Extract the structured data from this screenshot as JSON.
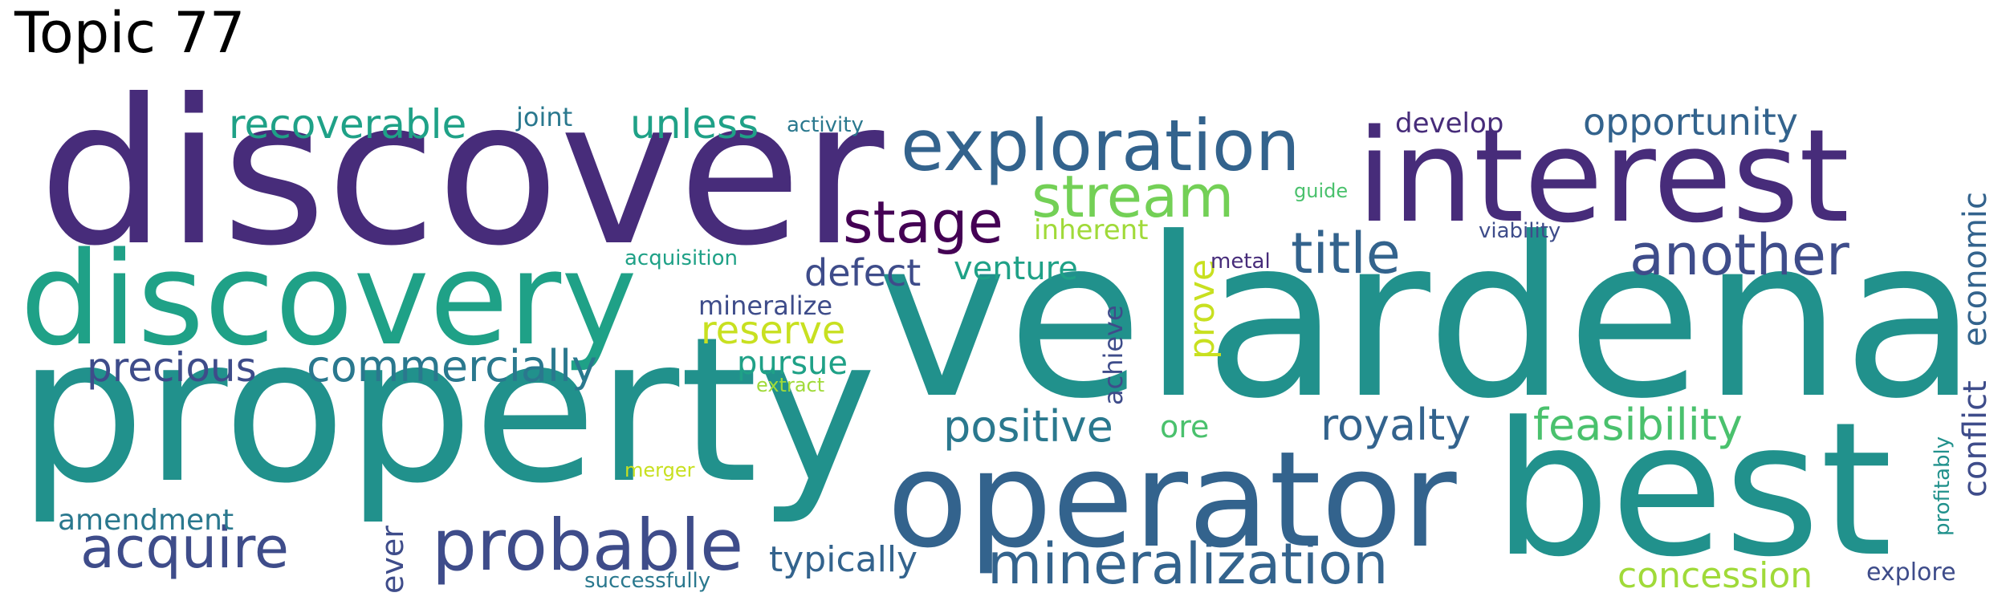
{
  "title": "Topic 77",
  "colors": {
    "c1": "#472c7a",
    "c2": "#3e4c8a",
    "c3": "#33638d",
    "c4": "#2a788e",
    "c5": "#21918c",
    "c6": "#1fa187",
    "c7": "#2db27d",
    "c8": "#4ac16d",
    "c9": "#73d056",
    "c10": "#a0da39",
    "c11": "#c8e020",
    "c12": "#440154"
  },
  "words": [
    {
      "text": "discover",
      "color": "c1"
    },
    {
      "text": "velardena",
      "color": "c5"
    },
    {
      "text": "property",
      "color": "c5"
    },
    {
      "text": "best",
      "color": "c5"
    },
    {
      "text": "interest",
      "color": "c1"
    },
    {
      "text": "discovery",
      "color": "c6"
    },
    {
      "text": "operator",
      "color": "c3"
    },
    {
      "text": "exploration",
      "color": "c3"
    },
    {
      "text": "mineralization",
      "color": "c3"
    },
    {
      "text": "probable",
      "color": "c2"
    },
    {
      "text": "stream",
      "color": "c9"
    },
    {
      "text": "acquire",
      "color": "c2"
    },
    {
      "text": "stage",
      "color": "c12"
    },
    {
      "text": "title",
      "color": "c3"
    },
    {
      "text": "another",
      "color": "c2"
    },
    {
      "text": "royalty",
      "color": "c3"
    },
    {
      "text": "feasibility",
      "color": "c8"
    },
    {
      "text": "commercially",
      "color": "c4"
    },
    {
      "text": "recoverable",
      "color": "c6"
    },
    {
      "text": "unless",
      "color": "c6"
    },
    {
      "text": "opportunity",
      "color": "c3"
    },
    {
      "text": "precious",
      "color": "c2"
    },
    {
      "text": "positive",
      "color": "c4"
    },
    {
      "text": "defect",
      "color": "c2"
    },
    {
      "text": "typically",
      "color": "c3"
    },
    {
      "text": "concession",
      "color": "c10"
    },
    {
      "text": "reserve",
      "color": "c11"
    },
    {
      "text": "pursue",
      "color": "c6"
    },
    {
      "text": "venture",
      "color": "c6"
    },
    {
      "text": "economic",
      "color": "c3"
    },
    {
      "text": "conflict",
      "color": "c2"
    },
    {
      "text": "prove",
      "color": "c11"
    },
    {
      "text": "amendment",
      "color": "c4"
    },
    {
      "text": "develop",
      "color": "c1"
    },
    {
      "text": "inherent",
      "color": "c10"
    },
    {
      "text": "mineralize",
      "color": "c2"
    },
    {
      "text": "joint",
      "color": "c4"
    },
    {
      "text": "ever",
      "color": "c2"
    },
    {
      "text": "ore",
      "color": "c8"
    },
    {
      "text": "achieve",
      "color": "c2"
    },
    {
      "text": "explore",
      "color": "c2"
    },
    {
      "text": "activity",
      "color": "c4"
    },
    {
      "text": "acquisition",
      "color": "c6"
    },
    {
      "text": "successfully",
      "color": "c4"
    },
    {
      "text": "viability",
      "color": "c2"
    },
    {
      "text": "metal",
      "color": "c1"
    },
    {
      "text": "guide",
      "color": "c8"
    },
    {
      "text": "extract",
      "color": "c10"
    },
    {
      "text": "merger",
      "color": "c11"
    },
    {
      "text": "profitably",
      "color": "c5"
    }
  ]
}
